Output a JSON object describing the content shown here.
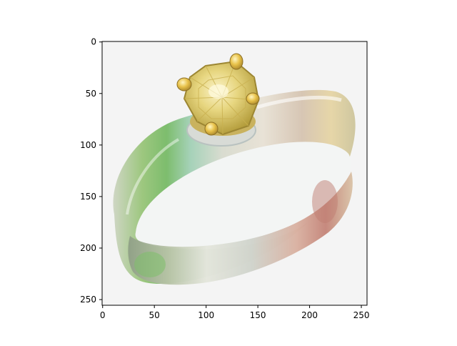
{
  "axes": {
    "x_ticks": [
      "0",
      "50",
      "100",
      "150",
      "200",
      "250"
    ],
    "y_ticks": [
      "0",
      "50",
      "100",
      "150",
      "200",
      "250"
    ],
    "x_range": [
      0,
      256
    ],
    "y_range": [
      256,
      0
    ],
    "y_inverted": true,
    "image_extent": 256
  },
  "image": {
    "subject": "gold ring with square yellow gemstone on iridescent band",
    "background_color": "#f4f4f4",
    "colors": {
      "gem": "#e4d37a",
      "gem_dark": "#b8a23a",
      "prong": "#e8c24a",
      "band_green": "#8cc47a",
      "band_rose": "#c88a7e",
      "band_silver": "#d8d8d2"
    }
  }
}
